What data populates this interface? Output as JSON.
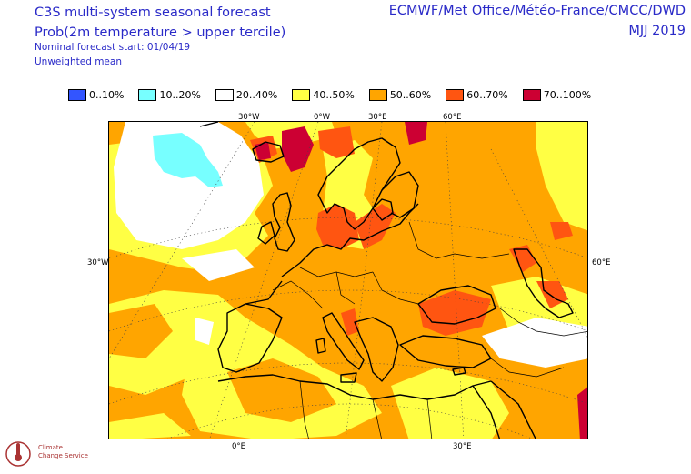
{
  "header": {
    "title": "C3S multi-system seasonal forecast",
    "subtitle": "Prob(2m temperature > upper tercile)",
    "forecast_start": "Nominal forecast start: 01/04/19",
    "mean_type": "Unweighted mean",
    "centres": "ECMWF/Met Office/Météo-France/CMCC/DWD",
    "period": "MJJ 2019"
  },
  "legend": [
    {
      "label": "0..10%",
      "color": "#3355ff"
    },
    {
      "label": "10..20%",
      "color": "#77ffff"
    },
    {
      "label": "20..40%",
      "color": "#ffffff"
    },
    {
      "label": "40..50%",
      "color": "#ffff44"
    },
    {
      "label": "50..60%",
      "color": "#ffa500"
    },
    {
      "label": "60..70%",
      "color": "#ff5511"
    },
    {
      "label": "70..100%",
      "color": "#cc0033"
    }
  ],
  "axes": {
    "top": [
      "30°W",
      "0°W",
      "30°E",
      "60°E"
    ],
    "left": "30°W",
    "right": "60°E",
    "bottom": [
      "0°E",
      "30°E"
    ]
  },
  "logo": {
    "icon": "thermometer-logo-icon",
    "line1": "Climate",
    "line2": "Change Service"
  }
}
